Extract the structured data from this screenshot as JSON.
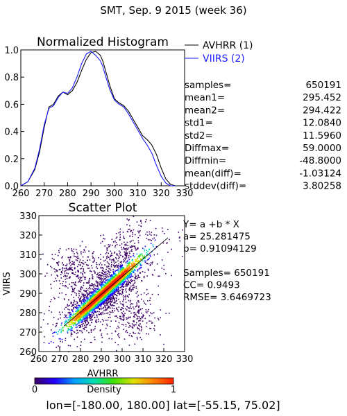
{
  "header": {
    "title": "SMT,  Sep. 9 2015 (week 36)"
  },
  "colors": {
    "avhrr": "#000000",
    "viirs": "#1a1aff",
    "fit_line": "#000000"
  },
  "chart_data": [
    {
      "type": "line",
      "title": "Normalized Histogram",
      "xlim": [
        260,
        330
      ],
      "ylim": [
        0.0,
        1.0
      ],
      "x_ticks": [
        260,
        270,
        280,
        290,
        300,
        310,
        320,
        330
      ],
      "y_ticks": [
        "0.0",
        "0.2",
        "0.4",
        "0.6",
        "0.8",
        "1.0"
      ],
      "x": [
        260,
        263,
        266,
        268,
        270,
        272,
        274,
        276,
        278,
        280,
        282,
        284,
        286,
        288,
        290,
        292,
        294,
        295,
        296,
        298,
        300,
        302,
        304,
        306,
        308,
        310,
        312,
        314,
        316,
        318,
        320,
        322,
        324,
        326
      ],
      "series": [
        {
          "name": "AVHRR (1)",
          "color": "#000000",
          "values": [
            0.0,
            0.03,
            0.12,
            0.25,
            0.43,
            0.58,
            0.6,
            0.66,
            0.69,
            0.67,
            0.7,
            0.76,
            0.85,
            0.93,
            0.98,
            0.99,
            0.96,
            0.92,
            0.86,
            0.74,
            0.64,
            0.61,
            0.59,
            0.55,
            0.49,
            0.43,
            0.37,
            0.34,
            0.3,
            0.23,
            0.13,
            0.05,
            0.01,
            0.0
          ]
        },
        {
          "name": "VIIRS (2)",
          "color": "#1a1aff",
          "values": [
            0.0,
            0.03,
            0.13,
            0.27,
            0.45,
            0.57,
            0.59,
            0.65,
            0.69,
            0.68,
            0.72,
            0.8,
            0.9,
            0.97,
            0.99,
            0.96,
            0.92,
            0.88,
            0.82,
            0.71,
            0.63,
            0.6,
            0.58,
            0.53,
            0.47,
            0.41,
            0.35,
            0.3,
            0.24,
            0.15,
            0.07,
            0.02,
            0.0,
            0.0
          ]
        }
      ],
      "stats": [
        {
          "label": "samples=",
          "value": "650191"
        },
        {
          "label": "mean1=",
          "value": "295.452"
        },
        {
          "label": "mean2=",
          "value": "294.422"
        },
        {
          "label": "std1=",
          "value": "12.0840"
        },
        {
          "label": "std2=",
          "value": "11.5960"
        },
        {
          "label": "Diffmax=",
          "value": "59.0000"
        },
        {
          "label": "Diffmin=",
          "value": "-48.8000"
        },
        {
          "label": "mean(diff)=",
          "value": "-1.03124"
        },
        {
          "label": "stddev(diff)=",
          "value": "3.80258"
        }
      ]
    },
    {
      "type": "scatter",
      "title": "Scatter Plot",
      "xlabel": "AVHRR",
      "ylabel": "VIIRS",
      "xlim": [
        260,
        330
      ],
      "ylim": [
        260,
        330
      ],
      "x_ticks": [
        260,
        270,
        280,
        290,
        300,
        310,
        320,
        330
      ],
      "y_ticks": [
        260,
        270,
        280,
        290,
        300,
        310,
        320,
        330
      ],
      "fit": {
        "a": 25.281475,
        "b": 0.91094129
      },
      "density_clusters": [
        {
          "x": 291,
          "y": 290.5,
          "sd_along": 9.5,
          "sd_across": 1.3,
          "n": 2600
        },
        {
          "x": 290,
          "y": 289,
          "sd_along": 12,
          "sd_across": 3.8,
          "n": 1400
        },
        {
          "x": 276,
          "y": 301,
          "sd_along": 6,
          "sd_across": 6,
          "n": 260
        },
        {
          "x": 305,
          "y": 278,
          "sd_along": 7,
          "sd_across": 6,
          "n": 220
        },
        {
          "x": 300,
          "y": 312,
          "sd_along": 10,
          "sd_across": 5,
          "n": 260
        },
        {
          "x": 293,
          "y": 292,
          "sd_along": 20,
          "sd_across": 9,
          "n": 420
        }
      ],
      "stats_text": [
        "Y= a +b * X",
        "a= 25.281475",
        "b= 0.91094129",
        "",
        "Samples= 650191",
        "CC=  0.9493",
        "RMSE= 3.6469723"
      ]
    }
  ],
  "colorbar": {
    "label": "Density",
    "min_label": "0",
    "max_label": "1",
    "stops": [
      "#3c0064",
      "#2200ff",
      "#00a0ff",
      "#00e0b0",
      "#40e000",
      "#e0e000",
      "#ff8000",
      "#ff2000"
    ]
  },
  "footer": {
    "text": "lon=[-180.00, 180.00]  lat=[-55.15, 75.02]"
  }
}
